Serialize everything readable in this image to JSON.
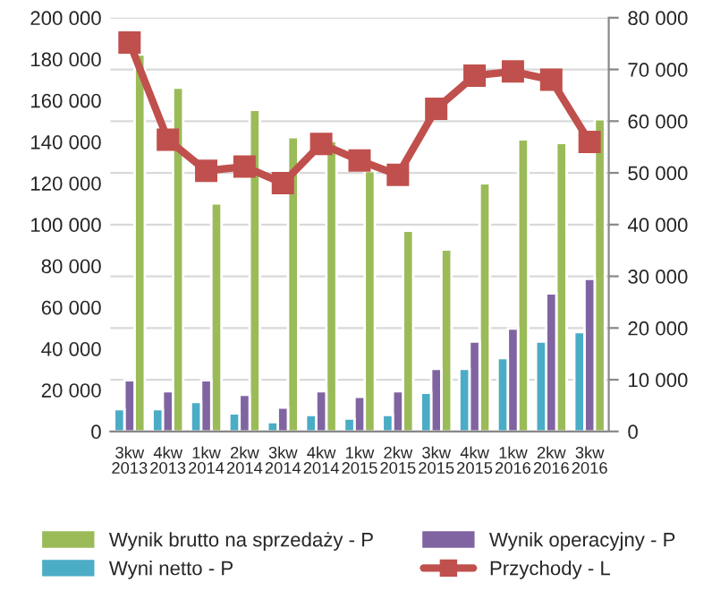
{
  "chart_data": {
    "type": "bar",
    "categories": [
      "3kw\n2013",
      "4kw\n2013",
      "1kw\n2014",
      "2kw\n2014",
      "3kw\n2014",
      "4kw\n2014",
      "1kw\n2015",
      "2kw\n2015",
      "3kw\n2015",
      "4kw\n2015",
      "1kw\n2016",
      "2kw\n2016",
      "3kw\n2016"
    ],
    "series": [
      {
        "name": "Wynik brutto na sprzedaży - P",
        "color": "#9bbb59",
        "axis": "y2",
        "values": [
          72900,
          66500,
          44100,
          62200,
          56900,
          56200,
          50400,
          38800,
          35200,
          48000,
          56500,
          55800,
          60400
        ]
      },
      {
        "name": "Wynik operacyjny - P",
        "color": "#8064a2",
        "axis": "y2",
        "values": [
          9900,
          7800,
          9900,
          7100,
          4600,
          7800,
          6700,
          7800,
          12100,
          17400,
          19900,
          26700,
          29500
        ]
      },
      {
        "name": "Wyni netto - P",
        "color": "#4bacc6",
        "axis": "y2",
        "values": [
          4300,
          4300,
          5700,
          3500,
          1800,
          3200,
          2500,
          3200,
          7500,
          12100,
          14200,
          17400,
          19200
        ]
      },
      {
        "name": "Przychody - L",
        "color": "#c0504d",
        "type": "line",
        "axis": "y",
        "marker": "square",
        "values": [
          188000,
          141000,
          126000,
          128000,
          120000,
          139000,
          131000,
          124000,
          156000,
          172000,
          174000,
          170000,
          140000
        ]
      }
    ],
    "ylim": [
      0,
      200000
    ],
    "yticks": [
      {
        "value": 0,
        "label": "0"
      },
      {
        "value": 20000,
        "label": "20 000"
      },
      {
        "value": 40000,
        "label": "40 000"
      },
      {
        "value": 60000,
        "label": "60 000"
      },
      {
        "value": 80000,
        "label": "80 000"
      },
      {
        "value": 100000,
        "label": "100 000"
      },
      {
        "value": 120000,
        "label": "120 000"
      },
      {
        "value": 140000,
        "label": "140 000"
      },
      {
        "value": 160000,
        "label": "160 000"
      },
      {
        "value": 180000,
        "label": "180 000"
      },
      {
        "value": 200000,
        "label": "200 000"
      }
    ],
    "y2lim": [
      0,
      80000
    ],
    "y2ticks": [
      {
        "value": 0,
        "label": "0"
      },
      {
        "value": 10000,
        "label": "10 000"
      },
      {
        "value": 20000,
        "label": "20 000"
      },
      {
        "value": 30000,
        "label": "30 000"
      },
      {
        "value": 40000,
        "label": "40 000"
      },
      {
        "value": 50000,
        "label": "50 000"
      },
      {
        "value": 60000,
        "label": "60 000"
      },
      {
        "value": 70000,
        "label": "70 000"
      },
      {
        "value": 80000,
        "label": "80 000"
      }
    ],
    "grid": "y",
    "legend": "bottom"
  }
}
